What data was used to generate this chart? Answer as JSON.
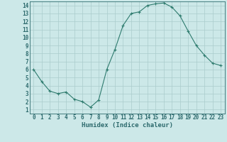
{
  "x": [
    0,
    1,
    2,
    3,
    4,
    5,
    6,
    7,
    8,
    9,
    10,
    11,
    12,
    13,
    14,
    15,
    16,
    17,
    18,
    19,
    20,
    21,
    22,
    23
  ],
  "y": [
    6.0,
    4.5,
    3.3,
    3.0,
    3.2,
    2.3,
    2.0,
    1.3,
    2.2,
    6.0,
    8.5,
    11.5,
    13.0,
    13.2,
    14.0,
    14.2,
    14.3,
    13.8,
    12.7,
    10.8,
    9.0,
    7.8,
    6.8,
    6.5
  ],
  "line_color": "#2e7b6e",
  "marker": "+",
  "bg_color": "#cce8e8",
  "grid_color": "#aacccc",
  "xlabel": "Humidex (Indice chaleur)",
  "xlim": [
    -0.5,
    23.5
  ],
  "ylim": [
    0.5,
    14.5
  ],
  "xtick_labels": [
    "0",
    "1",
    "2",
    "3",
    "4",
    "5",
    "6",
    "7",
    "8",
    "9",
    "10",
    "11",
    "12",
    "13",
    "14",
    "15",
    "16",
    "17",
    "18",
    "19",
    "20",
    "21",
    "22",
    "23"
  ],
  "ytick_labels": [
    "1",
    "2",
    "3",
    "4",
    "5",
    "6",
    "7",
    "8",
    "9",
    "10",
    "11",
    "12",
    "13",
    "14"
  ],
  "text_color": "#2e6b6e",
  "tick_fontsize": 5.5,
  "label_fontsize": 6.5
}
